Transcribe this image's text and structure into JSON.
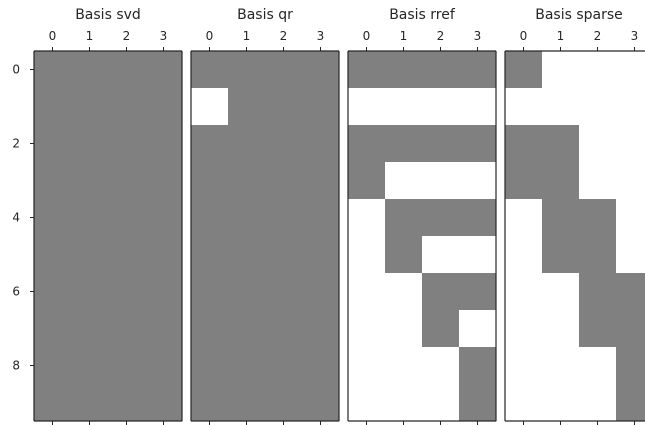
{
  "chart_data": [
    {
      "type": "heatmap",
      "title": "Basis svd",
      "xticks": [
        "0",
        "1",
        "2",
        "3"
      ],
      "yticks": [
        "0",
        "2",
        "4",
        "6",
        "8"
      ],
      "rows": 10,
      "cols": 4,
      "cells": [
        [
          1,
          1,
          1,
          1
        ],
        [
          1,
          1,
          1,
          1
        ],
        [
          1,
          1,
          1,
          1
        ],
        [
          1,
          1,
          1,
          1
        ],
        [
          1,
          1,
          1,
          1
        ],
        [
          1,
          1,
          1,
          1
        ],
        [
          1,
          1,
          1,
          1
        ],
        [
          1,
          1,
          1,
          1
        ],
        [
          1,
          1,
          1,
          1
        ],
        [
          1,
          1,
          1,
          1
        ]
      ]
    },
    {
      "type": "heatmap",
      "title": "Basis qr",
      "xticks": [
        "0",
        "1",
        "2",
        "3"
      ],
      "rows": 10,
      "cols": 4,
      "cells": [
        [
          1,
          1,
          1,
          1
        ],
        [
          0,
          1,
          1,
          1
        ],
        [
          1,
          1,
          1,
          1
        ],
        [
          1,
          1,
          1,
          1
        ],
        [
          1,
          1,
          1,
          1
        ],
        [
          1,
          1,
          1,
          1
        ],
        [
          1,
          1,
          1,
          1
        ],
        [
          1,
          1,
          1,
          1
        ],
        [
          1,
          1,
          1,
          1
        ],
        [
          1,
          1,
          1,
          1
        ]
      ]
    },
    {
      "type": "heatmap",
      "title": "Basis rref",
      "xticks": [
        "0",
        "1",
        "2",
        "3"
      ],
      "rows": 10,
      "cols": 4,
      "cells": [
        [
          1,
          1,
          1,
          1
        ],
        [
          0,
          0,
          0,
          0
        ],
        [
          1,
          1,
          1,
          1
        ],
        [
          1,
          0,
          0,
          0
        ],
        [
          0,
          1,
          1,
          1
        ],
        [
          0,
          1,
          0,
          0
        ],
        [
          0,
          0,
          1,
          1
        ],
        [
          0,
          0,
          1,
          0
        ],
        [
          0,
          0,
          0,
          1
        ],
        [
          0,
          0,
          0,
          1
        ]
      ]
    },
    {
      "type": "heatmap",
      "title": "Basis sparse",
      "xticks": [
        "0",
        "1",
        "2",
        "3"
      ],
      "rows": 10,
      "cols": 4,
      "cells": [
        [
          1,
          0,
          0,
          0
        ],
        [
          0,
          0,
          0,
          0
        ],
        [
          1,
          1,
          0,
          0
        ],
        [
          1,
          1,
          0,
          0
        ],
        [
          0,
          1,
          1,
          0
        ],
        [
          0,
          1,
          1,
          0
        ],
        [
          0,
          0,
          1,
          1
        ],
        [
          0,
          0,
          1,
          1
        ],
        [
          0,
          0,
          0,
          1
        ],
        [
          0,
          0,
          0,
          1
        ]
      ]
    }
  ],
  "colors": {
    "filled": "#808080",
    "empty": "#ffffff",
    "frame": "#262626"
  }
}
